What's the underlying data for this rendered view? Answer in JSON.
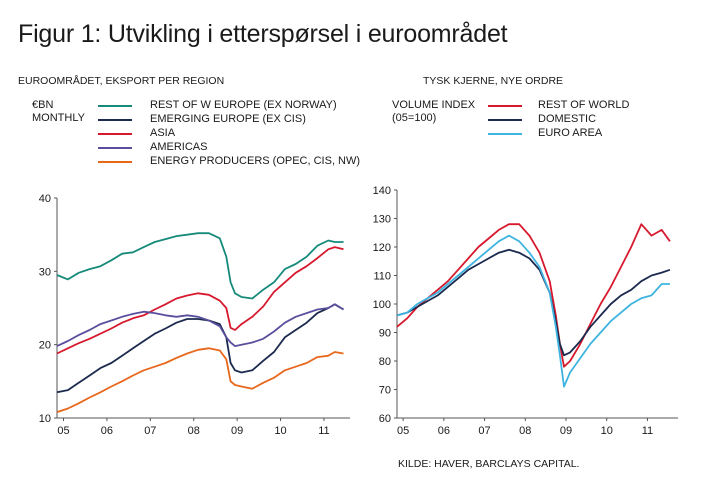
{
  "title": "Figur 1:  Utvikling i etterspørsel i euroområdet",
  "source": "KILDE: HAVER, BARCLAYS CAPITAL.",
  "chart_data": [
    {
      "type": "line",
      "title": "EUROOMRÅDET, EKSPORT PER REGION",
      "ylabel": [
        "€BN",
        "MONTHLY"
      ],
      "ylim": [
        10,
        40
      ],
      "yticks": [
        10,
        20,
        30,
        40
      ],
      "xlim": [
        2005.0,
        2011.75
      ],
      "xticks": [
        {
          "value": 2005.15,
          "label": "05"
        },
        {
          "value": 2006.15,
          "label": "06"
        },
        {
          "value": 2007.15,
          "label": "07"
        },
        {
          "value": 2008.15,
          "label": "08"
        },
        {
          "value": 2009.15,
          "label": "09"
        },
        {
          "value": 2010.15,
          "label": "10"
        },
        {
          "value": 2011.15,
          "label": "11"
        }
      ],
      "grid": false,
      "legend": "top",
      "series": [
        {
          "name": "REST OF W EUROPE (EX NORWAY)",
          "color": "#168a7b",
          "points": [
            [
              2005.0,
              29.5
            ],
            [
              2005.25,
              28.9
            ],
            [
              2005.5,
              29.8
            ],
            [
              2005.75,
              30.3
            ],
            [
              2006.0,
              30.7
            ],
            [
              2006.25,
              31.5
            ],
            [
              2006.5,
              32.4
            ],
            [
              2006.75,
              32.6
            ],
            [
              2007.0,
              33.3
            ],
            [
              2007.25,
              34.0
            ],
            [
              2007.5,
              34.4
            ],
            [
              2007.75,
              34.8
            ],
            [
              2008.0,
              35.0
            ],
            [
              2008.25,
              35.2
            ],
            [
              2008.5,
              35.2
            ],
            [
              2008.75,
              34.5
            ],
            [
              2008.9,
              32.0
            ],
            [
              2009.0,
              28.5
            ],
            [
              2009.1,
              27.0
            ],
            [
              2009.25,
              26.5
            ],
            [
              2009.5,
              26.3
            ],
            [
              2009.75,
              27.5
            ],
            [
              2010.0,
              28.5
            ],
            [
              2010.25,
              30.3
            ],
            [
              2010.5,
              31.0
            ],
            [
              2010.75,
              32.0
            ],
            [
              2011.0,
              33.5
            ],
            [
              2011.25,
              34.2
            ],
            [
              2011.4,
              34.0
            ],
            [
              2011.6,
              34.0
            ]
          ]
        },
        {
          "name": "EMERGING EUROPE (EX CIS)",
          "color": "#1b2a4e",
          "points": [
            [
              2005.0,
              13.5
            ],
            [
              2005.25,
              13.8
            ],
            [
              2005.5,
              14.8
            ],
            [
              2005.75,
              15.8
            ],
            [
              2006.0,
              16.8
            ],
            [
              2006.25,
              17.5
            ],
            [
              2006.5,
              18.5
            ],
            [
              2006.75,
              19.5
            ],
            [
              2007.0,
              20.5
            ],
            [
              2007.25,
              21.5
            ],
            [
              2007.5,
              22.2
            ],
            [
              2007.75,
              23.0
            ],
            [
              2008.0,
              23.5
            ],
            [
              2008.25,
              23.5
            ],
            [
              2008.5,
              23.3
            ],
            [
              2008.75,
              22.8
            ],
            [
              2008.9,
              21.0
            ],
            [
              2009.0,
              17.5
            ],
            [
              2009.1,
              16.5
            ],
            [
              2009.25,
              16.2
            ],
            [
              2009.5,
              16.5
            ],
            [
              2009.75,
              17.8
            ],
            [
              2010.0,
              19.0
            ],
            [
              2010.25,
              21.0
            ],
            [
              2010.5,
              22.0
            ],
            [
              2010.75,
              23.0
            ],
            [
              2011.0,
              24.3
            ],
            [
              2011.25,
              25.0
            ],
            [
              2011.4,
              25.5
            ],
            [
              2011.6,
              24.8
            ]
          ]
        },
        {
          "name": "ASIA",
          "color": "#d7192e",
          "points": [
            [
              2005.0,
              18.8
            ],
            [
              2005.25,
              19.5
            ],
            [
              2005.5,
              20.2
            ],
            [
              2005.75,
              20.8
            ],
            [
              2006.0,
              21.5
            ],
            [
              2006.25,
              22.2
            ],
            [
              2006.5,
              23.0
            ],
            [
              2006.75,
              23.6
            ],
            [
              2007.0,
              24.0
            ],
            [
              2007.25,
              24.8
            ],
            [
              2007.5,
              25.5
            ],
            [
              2007.75,
              26.3
            ],
            [
              2008.0,
              26.7
            ],
            [
              2008.25,
              27.0
            ],
            [
              2008.5,
              26.8
            ],
            [
              2008.75,
              26.0
            ],
            [
              2008.9,
              25.0
            ],
            [
              2009.0,
              22.3
            ],
            [
              2009.1,
              22.0
            ],
            [
              2009.25,
              22.8
            ],
            [
              2009.5,
              23.8
            ],
            [
              2009.75,
              25.2
            ],
            [
              2010.0,
              27.2
            ],
            [
              2010.25,
              28.5
            ],
            [
              2010.5,
              29.8
            ],
            [
              2010.75,
              30.7
            ],
            [
              2011.0,
              31.8
            ],
            [
              2011.25,
              33.0
            ],
            [
              2011.4,
              33.3
            ],
            [
              2011.6,
              33.0
            ]
          ]
        },
        {
          "name": "AMERICAS",
          "color": "#5a4f9c",
          "points": [
            [
              2005.0,
              19.8
            ],
            [
              2005.25,
              20.5
            ],
            [
              2005.5,
              21.3
            ],
            [
              2005.75,
              22.0
            ],
            [
              2006.0,
              22.8
            ],
            [
              2006.25,
              23.3
            ],
            [
              2006.5,
              23.8
            ],
            [
              2006.75,
              24.2
            ],
            [
              2007.0,
              24.5
            ],
            [
              2007.25,
              24.3
            ],
            [
              2007.5,
              24.0
            ],
            [
              2007.75,
              23.8
            ],
            [
              2008.0,
              24.0
            ],
            [
              2008.25,
              23.8
            ],
            [
              2008.5,
              23.3
            ],
            [
              2008.75,
              22.5
            ],
            [
              2008.9,
              21.0
            ],
            [
              2009.0,
              20.3
            ],
            [
              2009.1,
              19.8
            ],
            [
              2009.25,
              20.0
            ],
            [
              2009.5,
              20.3
            ],
            [
              2009.75,
              20.8
            ],
            [
              2010.0,
              21.8
            ],
            [
              2010.25,
              23.0
            ],
            [
              2010.5,
              23.8
            ],
            [
              2010.75,
              24.3
            ],
            [
              2011.0,
              24.8
            ],
            [
              2011.25,
              25.0
            ],
            [
              2011.4,
              25.5
            ],
            [
              2011.6,
              24.8
            ]
          ]
        },
        {
          "name": "ENERGY PRODUCERS (OPEC, CIS, NW)",
          "color": "#e8671b",
          "points": [
            [
              2005.0,
              10.8
            ],
            [
              2005.25,
              11.3
            ],
            [
              2005.5,
              12.0
            ],
            [
              2005.75,
              12.8
            ],
            [
              2006.0,
              13.5
            ],
            [
              2006.25,
              14.3
            ],
            [
              2006.5,
              15.0
            ],
            [
              2006.75,
              15.8
            ],
            [
              2007.0,
              16.5
            ],
            [
              2007.25,
              17.0
            ],
            [
              2007.5,
              17.5
            ],
            [
              2007.75,
              18.2
            ],
            [
              2008.0,
              18.8
            ],
            [
              2008.25,
              19.3
            ],
            [
              2008.5,
              19.5
            ],
            [
              2008.75,
              19.2
            ],
            [
              2008.9,
              18.0
            ],
            [
              2009.0,
              15.0
            ],
            [
              2009.1,
              14.5
            ],
            [
              2009.25,
              14.3
            ],
            [
              2009.5,
              14.0
            ],
            [
              2009.75,
              14.8
            ],
            [
              2010.0,
              15.5
            ],
            [
              2010.25,
              16.5
            ],
            [
              2010.5,
              17.0
            ],
            [
              2010.75,
              17.5
            ],
            [
              2011.0,
              18.3
            ],
            [
              2011.25,
              18.5
            ],
            [
              2011.4,
              19.0
            ],
            [
              2011.6,
              18.8
            ]
          ]
        }
      ]
    },
    {
      "type": "line",
      "title": "TYSK KJERNE, NYE ORDRE",
      "ylabel": [
        "VOLUME INDEX",
        "(05=100)"
      ],
      "ylim": [
        60,
        140
      ],
      "yticks": [
        60,
        70,
        80,
        90,
        100,
        110,
        120,
        130,
        140
      ],
      "xlim": [
        2005.0,
        2011.9
      ],
      "xticks": [
        {
          "value": 2005.15,
          "label": "05"
        },
        {
          "value": 2006.15,
          "label": "06"
        },
        {
          "value": 2007.15,
          "label": "07"
        },
        {
          "value": 2008.15,
          "label": "08"
        },
        {
          "value": 2009.15,
          "label": "09"
        },
        {
          "value": 2010.15,
          "label": "10"
        },
        {
          "value": 2011.15,
          "label": "11"
        }
      ],
      "grid": false,
      "legend": "top",
      "series": [
        {
          "name": "REST OF WORLD",
          "color": "#d7192e",
          "points": [
            [
              2005.0,
              92.0
            ],
            [
              2005.25,
              95.0
            ],
            [
              2005.5,
              99.0
            ],
            [
              2005.75,
              102.0
            ],
            [
              2006.0,
              105.0
            ],
            [
              2006.25,
              108.0
            ],
            [
              2006.5,
              112.0
            ],
            [
              2006.75,
              116.0
            ],
            [
              2007.0,
              120.0
            ],
            [
              2007.25,
              123.0
            ],
            [
              2007.5,
              126.0
            ],
            [
              2007.75,
              128.0
            ],
            [
              2008.0,
              128.0
            ],
            [
              2008.25,
              124.0
            ],
            [
              2008.5,
              118.0
            ],
            [
              2008.75,
              108.0
            ],
            [
              2008.9,
              96.0
            ],
            [
              2009.0,
              86.0
            ],
            [
              2009.1,
              78.0
            ],
            [
              2009.25,
              80.0
            ],
            [
              2009.5,
              86.0
            ],
            [
              2009.75,
              93.0
            ],
            [
              2010.0,
              100.0
            ],
            [
              2010.25,
              106.0
            ],
            [
              2010.5,
              113.0
            ],
            [
              2010.75,
              120.0
            ],
            [
              2011.0,
              128.0
            ],
            [
              2011.25,
              124.0
            ],
            [
              2011.5,
              126.0
            ],
            [
              2011.7,
              122.0
            ]
          ]
        },
        {
          "name": "DOMESTIC",
          "color": "#1b2a4e",
          "points": [
            [
              2005.0,
              96.0
            ],
            [
              2005.25,
              97.0
            ],
            [
              2005.5,
              99.0
            ],
            [
              2005.75,
              101.0
            ],
            [
              2006.0,
              103.0
            ],
            [
              2006.25,
              106.0
            ],
            [
              2006.5,
              109.0
            ],
            [
              2006.75,
              112.0
            ],
            [
              2007.0,
              114.0
            ],
            [
              2007.25,
              116.0
            ],
            [
              2007.5,
              118.0
            ],
            [
              2007.75,
              119.0
            ],
            [
              2008.0,
              118.0
            ],
            [
              2008.25,
              116.0
            ],
            [
              2008.5,
              112.0
            ],
            [
              2008.75,
              104.0
            ],
            [
              2008.9,
              94.0
            ],
            [
              2009.0,
              86.0
            ],
            [
              2009.1,
              82.0
            ],
            [
              2009.25,
              83.0
            ],
            [
              2009.5,
              87.0
            ],
            [
              2009.75,
              92.0
            ],
            [
              2010.0,
              96.0
            ],
            [
              2010.25,
              100.0
            ],
            [
              2010.5,
              103.0
            ],
            [
              2010.75,
              105.0
            ],
            [
              2011.0,
              108.0
            ],
            [
              2011.25,
              110.0
            ],
            [
              2011.5,
              111.0
            ],
            [
              2011.7,
              112.0
            ]
          ]
        },
        {
          "name": "EURO AREA",
          "color": "#3fb4e0",
          "points": [
            [
              2005.0,
              96.0
            ],
            [
              2005.25,
              97.0
            ],
            [
              2005.5,
              100.0
            ],
            [
              2005.75,
              102.0
            ],
            [
              2006.0,
              104.0
            ],
            [
              2006.25,
              107.0
            ],
            [
              2006.5,
              110.0
            ],
            [
              2006.75,
              113.0
            ],
            [
              2007.0,
              116.0
            ],
            [
              2007.25,
              119.0
            ],
            [
              2007.5,
              122.0
            ],
            [
              2007.75,
              124.0
            ],
            [
              2008.0,
              122.0
            ],
            [
              2008.25,
              118.0
            ],
            [
              2008.5,
              113.0
            ],
            [
              2008.75,
              104.0
            ],
            [
              2008.9,
              92.0
            ],
            [
              2009.0,
              82.0
            ],
            [
              2009.1,
              71.0
            ],
            [
              2009.25,
              76.0
            ],
            [
              2009.5,
              81.0
            ],
            [
              2009.75,
              86.0
            ],
            [
              2010.0,
              90.0
            ],
            [
              2010.25,
              94.0
            ],
            [
              2010.5,
              97.0
            ],
            [
              2010.75,
              100.0
            ],
            [
              2011.0,
              102.0
            ],
            [
              2011.25,
              103.0
            ],
            [
              2011.5,
              107.0
            ],
            [
              2011.7,
              107.0
            ]
          ]
        }
      ]
    }
  ]
}
